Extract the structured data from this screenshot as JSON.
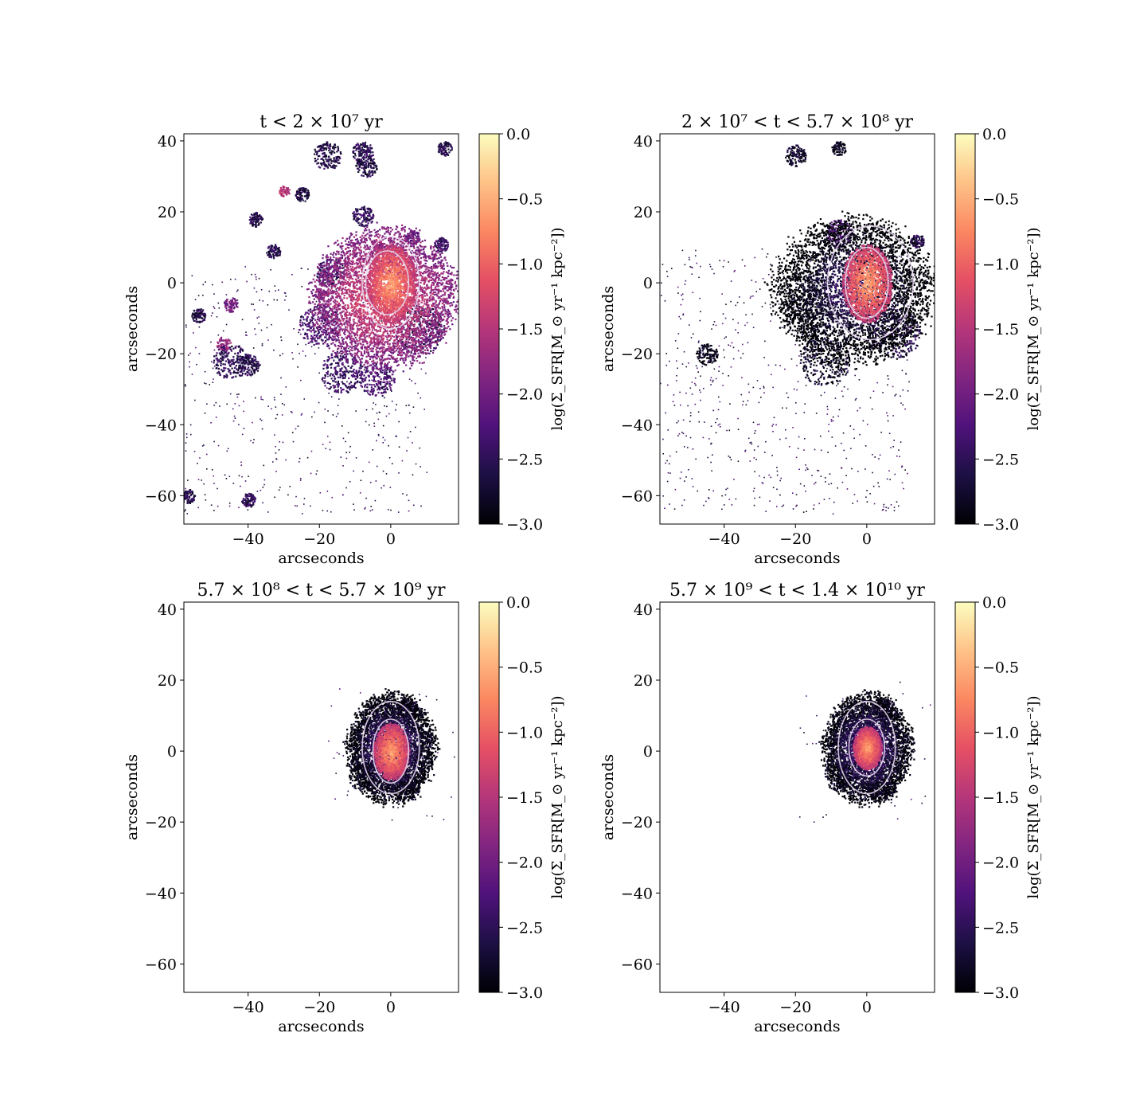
{
  "figure": {
    "colorbar_label": "log(Σ_SFR[M_⊙ yr⁻¹ kpc⁻²])",
    "colormap": "magma",
    "contour_color": "#e6d6ee"
  },
  "chart_data": [
    {
      "type": "heatmap",
      "title": "t < 2 × 10⁷ yr",
      "xlabel": "arcseconds",
      "ylabel": "arcseconds",
      "xlim": [
        -58,
        19
      ],
      "ylim": [
        -68,
        42
      ],
      "x_ticks": [
        -40,
        -20,
        0
      ],
      "y_ticks": [
        40,
        20,
        0,
        -20,
        -40,
        -60
      ],
      "colorbar": {
        "min": -3.0,
        "max": 0.0,
        "ticks": [
          0.0,
          -0.5,
          -1.0,
          -1.5,
          -2.0,
          -2.5,
          -3.0
        ]
      },
      "main_body": {
        "center": [
          -2,
          -4
        ],
        "radii": [
          20,
          19
        ],
        "peak": -0.8
      },
      "core": {
        "center": [
          0,
          0
        ],
        "radii": [
          7,
          11
        ]
      },
      "contours": [
        {
          "center": [
            0,
            0
          ],
          "radii": [
            8,
            13
          ]
        },
        {
          "center": [
            -1,
            0
          ],
          "radii": [
            6,
            9
          ]
        }
      ],
      "clumps": [
        {
          "x": -30,
          "y": 26,
          "r": 1.5,
          "v": -1.3
        },
        {
          "x": -47,
          "y": -17,
          "r": 2,
          "v": -1.5
        },
        {
          "x": -45,
          "y": -6,
          "r": 2,
          "v": -1.8
        },
        {
          "x": -20,
          "y": -3,
          "r": 1.5,
          "v": -1.6
        },
        {
          "x": -4,
          "y": 11,
          "r": 1.5,
          "v": -1.4
        },
        {
          "x": -17,
          "y": 3,
          "r": 4,
          "v": -2.2
        },
        {
          "x": -20,
          "y": -12,
          "r": 6,
          "v": -2.1
        },
        {
          "x": -14,
          "y": -25,
          "r": 6,
          "v": -2.2
        },
        {
          "x": -4,
          "y": -27,
          "r": 5,
          "v": -2.1
        },
        {
          "x": 8,
          "y": -13,
          "r": 7,
          "v": -2.3
        },
        {
          "x": -18,
          "y": 36,
          "r": 4,
          "v": -2.4
        },
        {
          "x": -8,
          "y": 37,
          "r": 3,
          "v": -2.3
        },
        {
          "x": -7,
          "y": 33,
          "r": 3,
          "v": -2.4
        },
        {
          "x": 15,
          "y": 38,
          "r": 2,
          "v": -2.4
        },
        {
          "x": 14,
          "y": 11,
          "r": 2,
          "v": -2.2
        },
        {
          "x": -54,
          "y": -9,
          "r": 2,
          "v": -2.4
        },
        {
          "x": -45,
          "y": -22,
          "r": 5,
          "v": -2.3
        },
        {
          "x": -40,
          "y": -23,
          "r": 3,
          "v": -2.4
        },
        {
          "x": -40,
          "y": -61,
          "r": 2,
          "v": -2.3
        },
        {
          "x": -57,
          "y": -60,
          "r": 2,
          "v": -2.4
        },
        {
          "x": -8,
          "y": 19,
          "r": 3,
          "v": -2.3
        },
        {
          "x": -25,
          "y": 25,
          "r": 2,
          "v": -2.4
        },
        {
          "x": -38,
          "y": 18,
          "r": 2,
          "v": -2.4
        },
        {
          "x": -33,
          "y": 9,
          "r": 2,
          "v": -2.4
        },
        {
          "x": 6,
          "y": 13,
          "r": 2,
          "v": -1.9
        }
      ],
      "noise": {
        "x": [
          -58,
          10
        ],
        "y": [
          -65,
          5
        ],
        "density": 0.25
      }
    },
    {
      "type": "heatmap",
      "title": "2 × 10⁷ < t < 5.7 × 10⁸ yr",
      "xlabel": "arcseconds",
      "ylabel": "arcseconds",
      "xlim": [
        -58,
        19
      ],
      "ylim": [
        -68,
        42
      ],
      "x_ticks": [
        -40,
        -20,
        0
      ],
      "y_ticks": [
        40,
        20,
        0,
        -20,
        -40,
        -60
      ],
      "colorbar": {
        "min": -3.0,
        "max": 0.0,
        "ticks": [
          0.0,
          -0.5,
          -1.0,
          -1.5,
          -2.0,
          -2.5,
          -3.0
        ]
      },
      "main_body": {
        "center": [
          -4,
          -2
        ],
        "radii": [
          22,
          20
        ],
        "peak": -2.1
      },
      "core": {
        "center": [
          0,
          0
        ],
        "radii": [
          7,
          11
        ]
      },
      "contours": [
        {
          "center": [
            1,
            0
          ],
          "radii": [
            12,
            16
          ]
        },
        {
          "center": [
            0,
            0
          ],
          "radii": [
            6,
            10
          ]
        }
      ],
      "clumps": [
        {
          "x": -16,
          "y": -8,
          "r": 7,
          "v": -2.7
        },
        {
          "x": -12,
          "y": -22,
          "r": 7,
          "v": -2.6
        },
        {
          "x": 8,
          "y": -14,
          "r": 7,
          "v": -2.4
        },
        {
          "x": -8,
          "y": 14,
          "r": 4,
          "v": -2.1
        },
        {
          "x": -20,
          "y": 36,
          "r": 3,
          "v": -2.6
        },
        {
          "x": -8,
          "y": 38,
          "r": 2,
          "v": -2.6
        },
        {
          "x": -45,
          "y": -20,
          "r": 3,
          "v": -2.7
        },
        {
          "x": 14,
          "y": 12,
          "r": 2,
          "v": -2.3
        }
      ],
      "noise": {
        "x": [
          -58,
          12
        ],
        "y": [
          -65,
          10
        ],
        "density": 0.3
      }
    },
    {
      "type": "heatmap",
      "title": "5.7 × 10⁸ < t < 5.7 × 10⁹ yr",
      "xlabel": "arcseconds",
      "ylabel": "arcseconds",
      "xlim": [
        -58,
        19
      ],
      "ylim": [
        -68,
        42
      ],
      "x_ticks": [
        -40,
        -20,
        0
      ],
      "y_ticks": [
        40,
        20,
        0,
        -20,
        -40,
        -60
      ],
      "colorbar": {
        "min": -3.0,
        "max": 0.0,
        "ticks": [
          0.0,
          -0.5,
          -1.0,
          -1.5,
          -2.0,
          -2.5,
          -3.0
        ]
      },
      "main_body": {
        "center": [
          0,
          1
        ],
        "radii": [
          12,
          15
        ],
        "peak": -1.9
      },
      "core": {
        "center": [
          0,
          0
        ],
        "radii": [
          5,
          8
        ]
      },
      "contours": [
        {
          "center": [
            0,
            1
          ],
          "radii": [
            8,
            13
          ]
        },
        {
          "center": [
            0,
            0
          ],
          "radii": [
            5,
            9
          ]
        }
      ],
      "clumps": [
        {
          "x": -8,
          "y": -7,
          "r": 4,
          "v": -2.7
        },
        {
          "x": 4,
          "y": -10,
          "r": 4,
          "v": -2.6
        },
        {
          "x": 5,
          "y": 12,
          "r": 3,
          "v": -2.4
        }
      ],
      "noise": {
        "x": [
          -20,
          18
        ],
        "y": [
          -20,
          20
        ],
        "density": 0.02
      }
    },
    {
      "type": "heatmap",
      "title": "5.7 × 10⁹ < t < 1.4 × 10¹⁰ yr",
      "xlabel": "arcseconds",
      "ylabel": "arcseconds",
      "xlim": [
        -58,
        19
      ],
      "ylim": [
        -68,
        42
      ],
      "x_ticks": [
        -40,
        -20,
        0
      ],
      "y_ticks": [
        40,
        20,
        0,
        -20,
        -40,
        -60
      ],
      "colorbar": {
        "min": -3.0,
        "max": 0.0,
        "ticks": [
          0.0,
          -0.5,
          -1.0,
          -1.5,
          -2.0,
          -2.5,
          -3.0
        ]
      },
      "main_body": {
        "center": [
          0,
          1
        ],
        "radii": [
          12,
          15
        ],
        "peak": -1.9
      },
      "core": {
        "center": [
          0,
          1
        ],
        "radii": [
          4,
          6
        ]
      },
      "contours": [
        {
          "center": [
            0,
            1
          ],
          "radii": [
            8,
            13
          ]
        },
        {
          "center": [
            0,
            1
          ],
          "radii": [
            5,
            8
          ]
        }
      ],
      "clumps": [
        {
          "x": -8,
          "y": -7,
          "r": 4,
          "v": -2.7
        },
        {
          "x": 4,
          "y": -10,
          "r": 4,
          "v": -2.6
        },
        {
          "x": 5,
          "y": 12,
          "r": 3,
          "v": -2.4
        }
      ],
      "noise": {
        "x": [
          -20,
          18
        ],
        "y": [
          -20,
          20
        ],
        "density": 0.02
      }
    }
  ]
}
